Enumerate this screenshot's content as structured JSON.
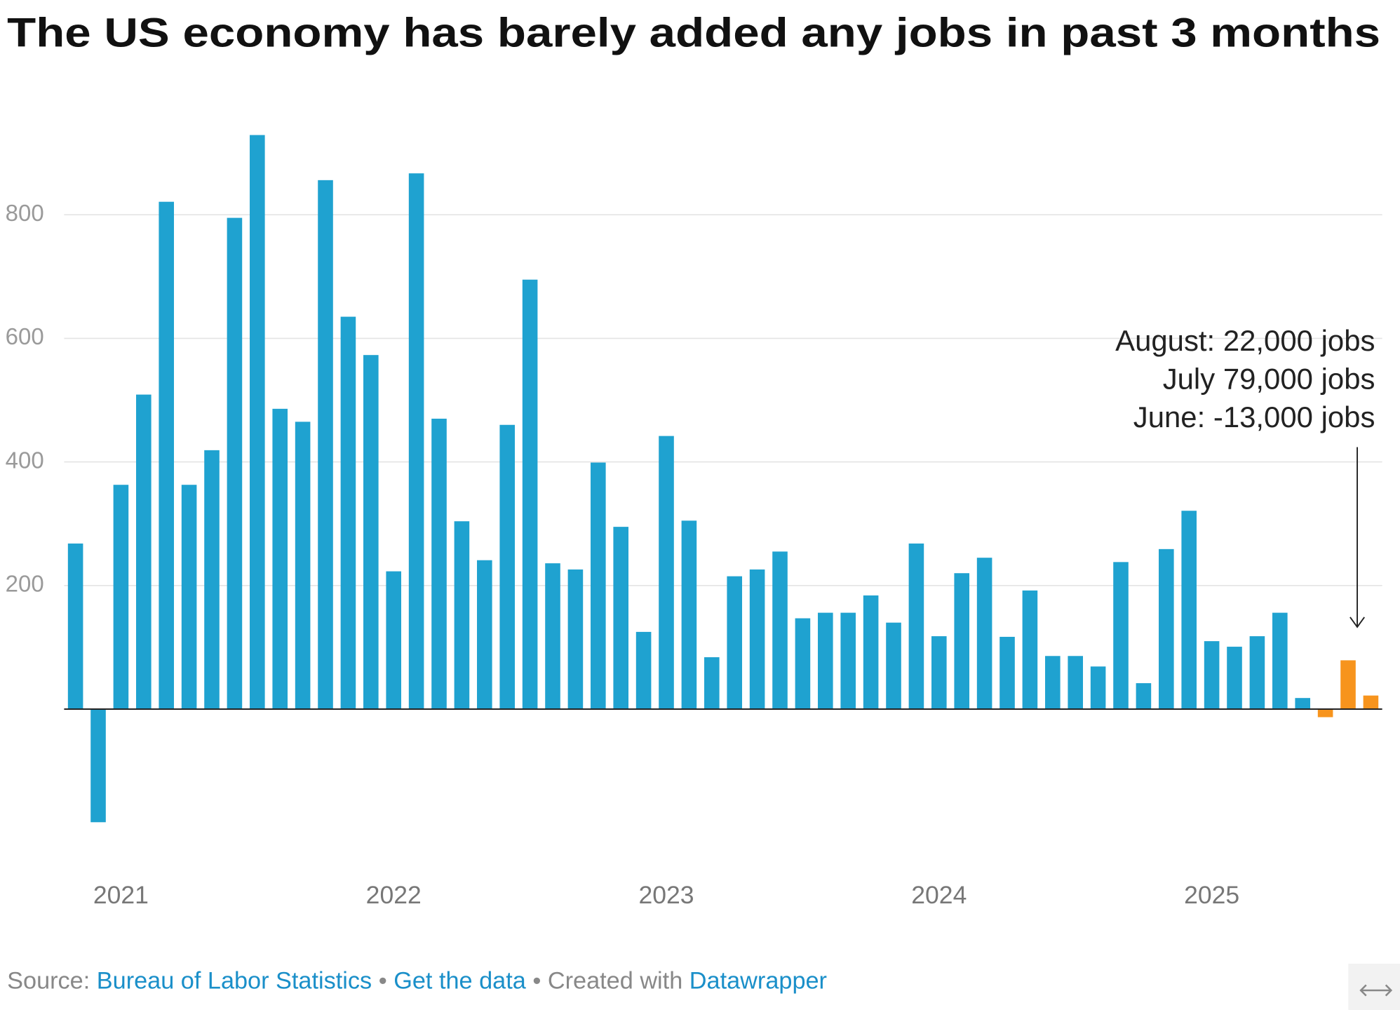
{
  "chart_data": {
    "type": "bar",
    "title": "The US economy has barely added any jobs in past 3 months",
    "categories": [
      null,
      null,
      "2021",
      null,
      null,
      null,
      null,
      null,
      null,
      null,
      null,
      null,
      null,
      null,
      "2022",
      null,
      null,
      null,
      null,
      null,
      null,
      null,
      null,
      null,
      null,
      null,
      "2023",
      null,
      null,
      null,
      null,
      null,
      null,
      null,
      null,
      null,
      null,
      null,
      "2024",
      null,
      null,
      null,
      null,
      null,
      null,
      null,
      null,
      null,
      null,
      null,
      "2025",
      null,
      null,
      null,
      null,
      null,
      null,
      null
    ],
    "values": [
      268,
      -183,
      363,
      509,
      821,
      363,
      419,
      795,
      929,
      486,
      465,
      856,
      635,
      573,
      223,
      867,
      470,
      304,
      241,
      460,
      695,
      236,
      226,
      399,
      295,
      125,
      442,
      305,
      84,
      215,
      226,
      255,
      147,
      156,
      156,
      184,
      140,
      268,
      118,
      220,
      245,
      117,
      192,
      86,
      86,
      69,
      238,
      42,
      259,
      321,
      110,
      101,
      118,
      156,
      18,
      -13,
      79,
      22
    ],
    "colors": [
      "#1fa2d0",
      "#1fa2d0",
      "#1fa2d0",
      "#1fa2d0",
      "#1fa2d0",
      "#1fa2d0",
      "#1fa2d0",
      "#1fa2d0",
      "#1fa2d0",
      "#1fa2d0",
      "#1fa2d0",
      "#1fa2d0",
      "#1fa2d0",
      "#1fa2d0",
      "#1fa2d0",
      "#1fa2d0",
      "#1fa2d0",
      "#1fa2d0",
      "#1fa2d0",
      "#1fa2d0",
      "#1fa2d0",
      "#1fa2d0",
      "#1fa2d0",
      "#1fa2d0",
      "#1fa2d0",
      "#1fa2d0",
      "#1fa2d0",
      "#1fa2d0",
      "#1fa2d0",
      "#1fa2d0",
      "#1fa2d0",
      "#1fa2d0",
      "#1fa2d0",
      "#1fa2d0",
      "#1fa2d0",
      "#1fa2d0",
      "#1fa2d0",
      "#1fa2d0",
      "#1fa2d0",
      "#1fa2d0",
      "#1fa2d0",
      "#1fa2d0",
      "#1fa2d0",
      "#1fa2d0",
      "#1fa2d0",
      "#1fa2d0",
      "#1fa2d0",
      "#1fa2d0",
      "#1fa2d0",
      "#1fa2d0",
      "#1fa2d0",
      "#1fa2d0",
      "#1fa2d0",
      "#1fa2d0",
      "#1fa2d0",
      "#f7941d",
      "#f7941d",
      "#f7941d"
    ],
    "ylim": [
      -200,
      950
    ],
    "yticks": [
      200,
      400,
      600,
      800
    ],
    "grid": true,
    "annotations": [
      "August: 22,000 jobs",
      "July 79,000 jobs",
      "June: -13,000 jobs"
    ]
  },
  "footer": {
    "source_label": "Source:",
    "source": "Bureau of Labor Statistics",
    "separator": "•",
    "get_data": "Get the data",
    "created_with": "Created with",
    "tool": "Datawrapper"
  }
}
